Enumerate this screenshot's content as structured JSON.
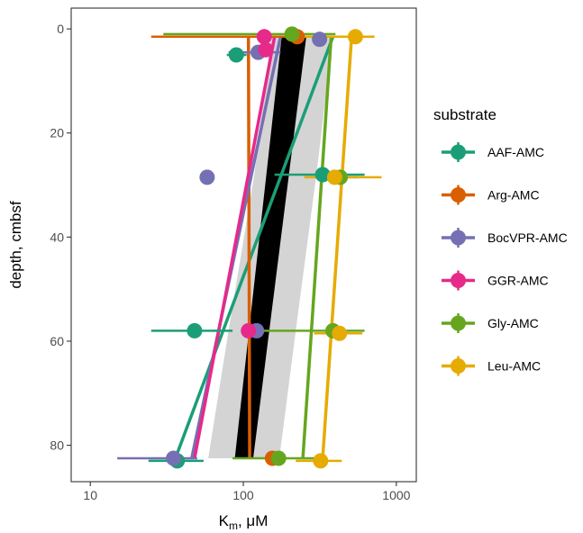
{
  "chart_data": {
    "type": "scatter",
    "xlabel": "K",
    "xlabel_sub": "m",
    "xlabel_unit": ", μM",
    "ylabel": "depth, cmbsf",
    "x_scale": "log",
    "xlim": [
      7.5,
      1350
    ],
    "ylim": [
      -4,
      87
    ],
    "y_reversed": true,
    "x_ticks": [
      10,
      100,
      1000
    ],
    "x_tick_labels": [
      "10",
      "100",
      "1000"
    ],
    "y_ticks": [
      0,
      20,
      40,
      60,
      80
    ],
    "y_tick_labels": [
      "0",
      "20",
      "40",
      "60",
      "80"
    ],
    "grid": false,
    "legend": {
      "title": "substrate",
      "position": "right"
    },
    "overall_fit": {
      "color": "#000000",
      "band_color": "#d4d4d4",
      "line": [
        {
          "y": 1.5,
          "x_low": 178,
          "x_high": 258
        },
        {
          "y": 82.5,
          "x_low": 88,
          "x_high": 116
        }
      ],
      "band": [
        {
          "y": 1.5,
          "x_low": 152,
          "x_high": 385
        },
        {
          "y": 28,
          "x_low": 118,
          "x_high": 300
        },
        {
          "y": 58,
          "x_low": 80,
          "x_high": 220
        },
        {
          "y": 82.5,
          "x_low": 59,
          "x_high": 172
        }
      ]
    },
    "series": [
      {
        "name": "AAF-AMC",
        "color": "#1b9e77",
        "points": [
          {
            "y": 5,
            "x": 90,
            "xmin": 78,
            "xmax": 105
          },
          {
            "y": 28,
            "x": 330,
            "xmin": 160,
            "xmax": 620
          },
          {
            "y": 58,
            "x": 48,
            "xmin": 25,
            "xmax": 85
          },
          {
            "y": 83,
            "x": 37,
            "xmin": 24,
            "xmax": 55
          }
        ],
        "fit": [
          {
            "y": 1.5,
            "x": 385
          },
          {
            "y": 82.5,
            "x": 36
          }
        ]
      },
      {
        "name": "Arg-AMC",
        "color": "#d95f02",
        "points": [
          {
            "y": 1.5,
            "x": 225,
            "xmin": 25,
            "xmax": 240
          },
          {
            "y": 82.5,
            "x": 155,
            "xmin": 145,
            "xmax": 170
          }
        ],
        "fit": [
          {
            "y": 1.5,
            "x": 108
          },
          {
            "y": 82.5,
            "x": 110
          }
        ]
      },
      {
        "name": "BocVPR-AMC",
        "color": "#7570b3",
        "points": [
          {
            "y": 2,
            "x": 315,
            "xmin": 300,
            "xmax": 330
          },
          {
            "y": 4.5,
            "x": 125,
            "xmin": 80,
            "xmax": 175
          },
          {
            "y": 28.5,
            "x": 58,
            "xmin": 55,
            "xmax": 62
          },
          {
            "y": 58,
            "x": 122,
            "xmin": 110,
            "xmax": 135
          },
          {
            "y": 82.5,
            "x": 35,
            "xmin": 15,
            "xmax": 50
          }
        ],
        "fit": [
          {
            "y": 1.5,
            "x": 175
          },
          {
            "y": 82.5,
            "x": 46
          }
        ]
      },
      {
        "name": "GGR-AMC",
        "color": "#e7298a",
        "points": [
          {
            "y": 1.5,
            "x": 137,
            "xmin": 130,
            "xmax": 145
          },
          {
            "y": 4,
            "x": 140,
            "xmin": 130,
            "xmax": 150
          },
          {
            "y": 58,
            "x": 108,
            "xmin": 100,
            "xmax": 118
          }
        ],
        "fit": [
          {
            "y": 1.5,
            "x": 160
          },
          {
            "y": 82.5,
            "x": 48
          }
        ]
      },
      {
        "name": "Gly-AMC",
        "color": "#66a61e",
        "points": [
          {
            "y": 1,
            "x": 208,
            "xmin": 30,
            "xmax": 400
          },
          {
            "y": 28.5,
            "x": 430,
            "xmin": 300,
            "xmax": 560
          },
          {
            "y": 58,
            "x": 385,
            "xmin": 130,
            "xmax": 620
          },
          {
            "y": 82.5,
            "x": 170,
            "xmin": 85,
            "xmax": 310
          }
        ],
        "fit": [
          {
            "y": 1.5,
            "x": 375
          },
          {
            "y": 82.5,
            "x": 245
          }
        ]
      },
      {
        "name": "Leu-AMC",
        "color": "#e6ab02",
        "points": [
          {
            "y": 1.5,
            "x": 540,
            "xmin": 240,
            "xmax": 720
          },
          {
            "y": 28.5,
            "x": 395,
            "xmin": 250,
            "xmax": 800
          },
          {
            "y": 58.5,
            "x": 425,
            "xmin": 290,
            "xmax": 600
          },
          {
            "y": 83,
            "x": 320,
            "xmin": 220,
            "xmax": 440
          }
        ],
        "fit": [
          {
            "y": 1.5,
            "x": 510
          },
          {
            "y": 82.5,
            "x": 330
          }
        ]
      }
    ]
  }
}
